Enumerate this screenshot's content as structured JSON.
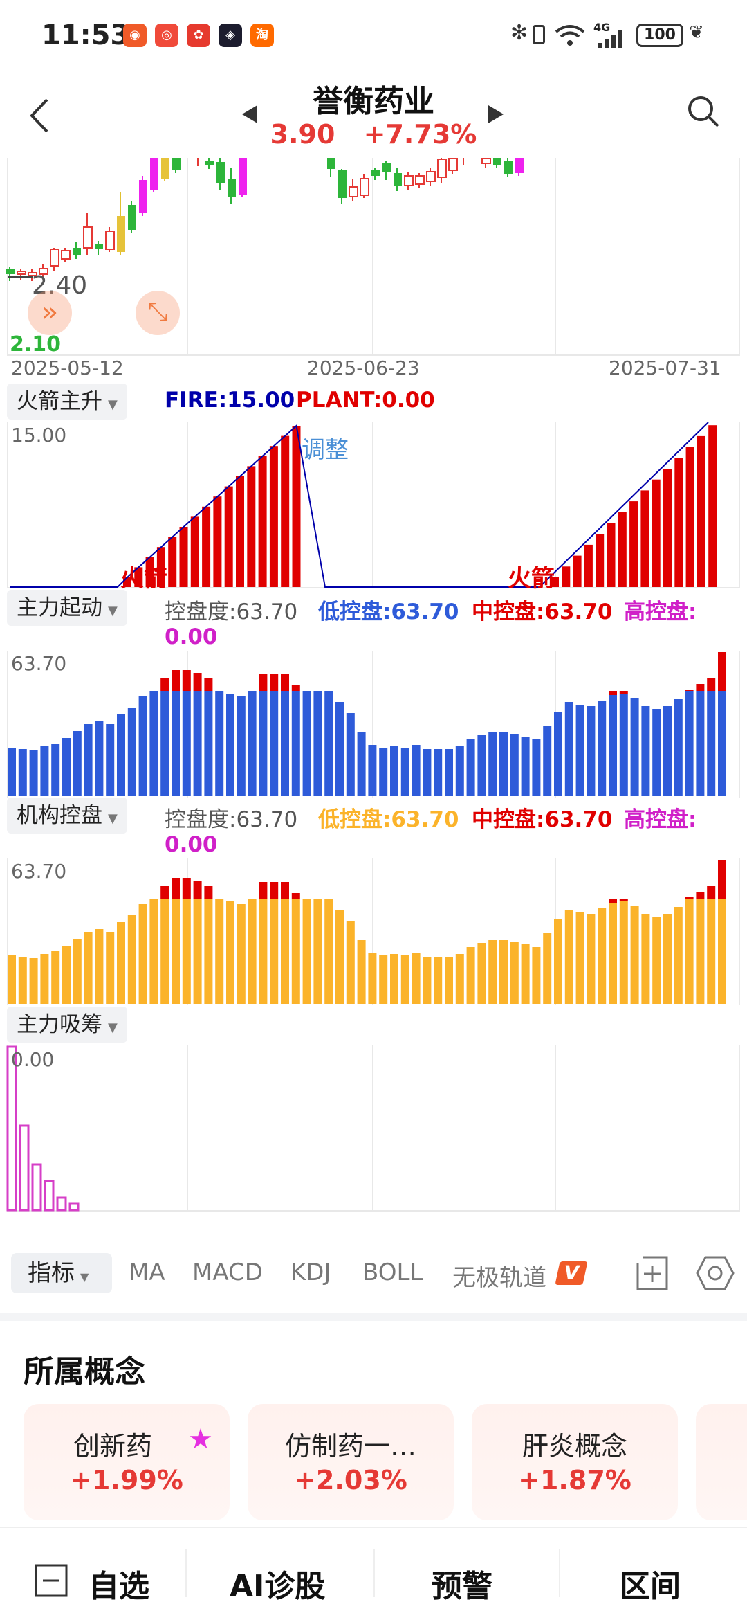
{
  "status_bar": {
    "time": "11:53",
    "battery": "100",
    "network": "4G"
  },
  "header": {
    "title": "誉衡药业",
    "price": "3.90",
    "change_pct": "+7.73%"
  },
  "kline": {
    "price_high_label": "2.40",
    "price_low_label": "2.10",
    "dates": [
      "2025-05-12",
      "2025-06-23",
      "2025-07-31"
    ]
  },
  "indicator1": {
    "name": "火箭主升",
    "fire_label": "FIRE:15.00",
    "plant_label": "PLANT:0.00",
    "axis_max": "15.00",
    "annotation_adjust": "调整",
    "annotation_rocket": "火箭",
    "fire_color": "#0000aa",
    "plant_color": "#e00000"
  },
  "indicator2": {
    "name": "主力起动",
    "label1": "控盘度:63.70",
    "label2": "低控盘:63.70",
    "label3": "中控盘:63.70",
    "label4": "高控盘:",
    "label4_val": "0.00",
    "axis_max": "63.70",
    "base_color": "#2e5bd9",
    "top_color": "#e00000"
  },
  "indicator3": {
    "name": "机构控盘",
    "label1": "控盘度:63.70",
    "label2": "低控盘:63.70",
    "label3": "中控盘:63.70",
    "label4": "高控盘:",
    "label4_val": "0.00",
    "axis_max": "63.70",
    "base_color": "#fbb32a",
    "top_color": "#e00000"
  },
  "indicator4": {
    "name": "主力吸筹",
    "axis_max": "0.00",
    "bar_color": "#d63fc7"
  },
  "toolbar": {
    "indicator_label": "指标",
    "items": [
      "MA",
      "MACD",
      "KDJ",
      "BOLL",
      "无极轨道"
    ],
    "badge": "V"
  },
  "concepts": {
    "title": "所属概念",
    "cards": [
      {
        "name": "创新药",
        "pct": "+1.99%"
      },
      {
        "name": "仿制药一…",
        "pct": "+2.03%"
      },
      {
        "name": "肝炎概念",
        "pct": "+1.87%"
      }
    ]
  },
  "bottom_nav": {
    "watchlist": "自选",
    "ai": "AI诊股",
    "alert": "预警",
    "range": "区间"
  }
}
